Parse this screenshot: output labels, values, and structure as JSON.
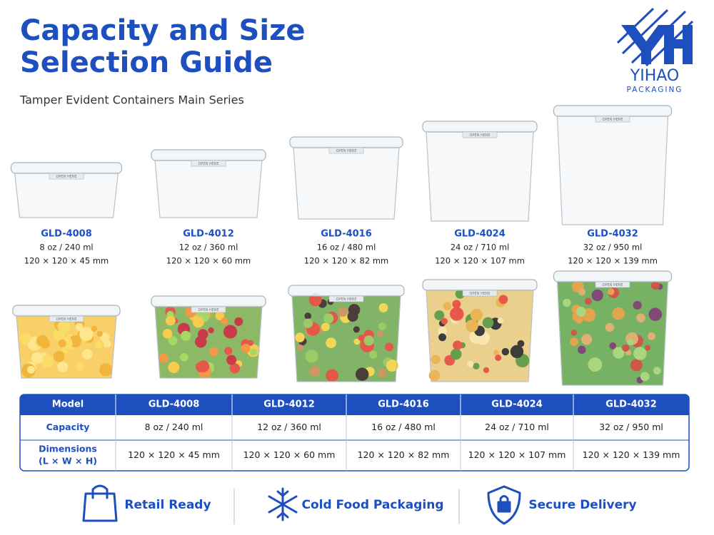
{
  "header": {
    "title": [
      "Capacity and Size",
      "Selection Guide"
    ],
    "subtitle": "Tamper Evident Containers Main Series"
  },
  "logo": {
    "name": "YIHAO",
    "tagline": "PACKAGING"
  },
  "container_label": "OPEN HERE",
  "products": [
    {
      "model": "GLD-4008",
      "capacity": "8 oz / 240 ml",
      "dimensions": "120 × 120 × 45 mm"
    },
    {
      "model": "GLD-4012",
      "capacity": "12 oz / 360 ml",
      "dimensions": "120 × 120 × 60 mm"
    },
    {
      "model": "GLD-4016",
      "capacity": "16 oz / 480 ml",
      "dimensions": "120 × 120 × 82 mm"
    },
    {
      "model": "GLD-4024",
      "capacity": "24 oz / 710 ml",
      "dimensions": "120 × 120 × 107 mm"
    },
    {
      "model": "GLD-4032",
      "capacity": "32 oz / 950 ml",
      "dimensions": "120 × 120 × 139 mm"
    }
  ],
  "table": {
    "columns": [
      "Model",
      "GLD-4008",
      "GLD-4012",
      "GLD-4016",
      "GLD-4024",
      "GLD-4032"
    ],
    "rows": [
      {
        "label": [
          "Capacity"
        ],
        "cells": [
          "8 oz / 240 ml",
          "12 oz / 360 ml",
          "16 oz / 480 ml",
          "24 oz / 710 ml",
          "32 oz / 950 ml"
        ]
      },
      {
        "label": [
          "Dimensions",
          "(L × W × H)"
        ],
        "cells": [
          "120 × 120 × 45 mm",
          "120 × 120 × 60 mm",
          "120 × 120 × 82 mm",
          "120 × 120 × 107 mm",
          "120 × 120 × 139 mm"
        ]
      }
    ]
  },
  "features": [
    "Retail Ready",
    "Cold Food Packaging",
    "Secure Delivery"
  ]
}
